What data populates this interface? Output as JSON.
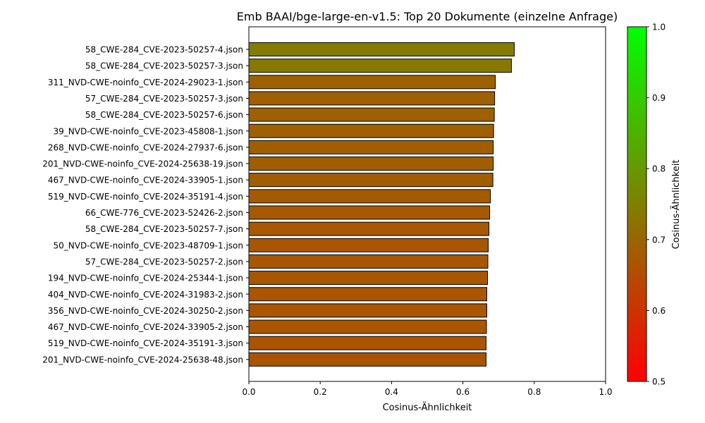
{
  "chart_data": {
    "type": "bar",
    "orientation": "horizontal",
    "title": "Emb BAAI/bge-large-en-v1.5: Top 20 Dokumente (einzelne Anfrage)",
    "xlabel": "Cosinus-Ähnlichkeit",
    "ylabel": "",
    "xlim": [
      0.0,
      1.0
    ],
    "xticks": [
      "0.0",
      "0.2",
      "0.4",
      "0.6",
      "0.8",
      "1.0"
    ],
    "grid": false,
    "categories": [
      "58_CWE-284_CVE-2023-50257-4.json",
      "58_CWE-284_CVE-2023-50257-3.json",
      "311_NVD-CWE-noinfo_CVE-2024-29023-1.json",
      "57_CWE-284_CVE-2023-50257-3.json",
      "58_CWE-284_CVE-2023-50257-6.json",
      "39_NVD-CWE-noinfo_CVE-2023-45808-1.json",
      "268_NVD-CWE-noinfo_CVE-2024-27937-6.json",
      "201_NVD-CWE-noinfo_CVE-2024-25638-19.json",
      "467_NVD-CWE-noinfo_CVE-2024-33905-1.json",
      "519_NVD-CWE-noinfo_CVE-2024-35191-4.json",
      "66_CWE-776_CVE-2023-52426-2.json",
      "58_CWE-284_CVE-2023-50257-7.json",
      "50_NVD-CWE-noinfo_CVE-2023-48709-1.json",
      "57_CWE-284_CVE-2023-50257-2.json",
      "194_NVD-CWE-noinfo_CVE-2024-25344-1.json",
      "404_NVD-CWE-noinfo_CVE-2024-31983-2.json",
      "356_NVD-CWE-noinfo_CVE-2024-30250-2.json",
      "467_NVD-CWE-noinfo_CVE-2024-33905-2.json",
      "519_NVD-CWE-noinfo_CVE-2024-35191-3.json",
      "201_NVD-CWE-noinfo_CVE-2024-25638-48.json"
    ],
    "values": [
      0.744,
      0.736,
      0.691,
      0.689,
      0.688,
      0.686,
      0.685,
      0.685,
      0.684,
      0.677,
      0.675,
      0.673,
      0.671,
      0.67,
      0.669,
      0.667,
      0.667,
      0.666,
      0.665,
      0.665
    ],
    "colorbar": {
      "label": "Cosinus-Ähnlichkeit",
      "range": [
        0.5,
        1.0
      ],
      "ticks": [
        "0.5",
        "0.6",
        "0.7",
        "0.8",
        "0.9",
        "1.0"
      ],
      "color_low": "#ff0000",
      "color_high": "#00ff00"
    },
    "bar_edge_color": "#000000"
  }
}
